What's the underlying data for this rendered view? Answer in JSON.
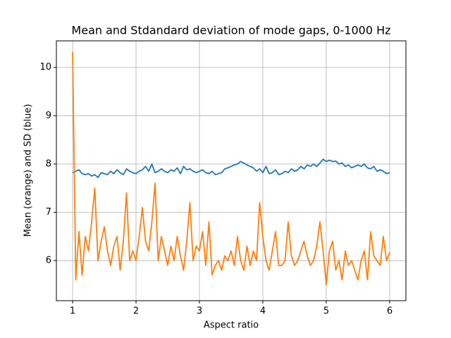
{
  "chart_data": {
    "type": "line",
    "title": "Mean and Stdandard deviation of mode gaps, 0-1000 Hz",
    "xlabel": "Aspect ratio",
    "ylabel": "Mean (orange) and SD (blue)",
    "x": [
      1,
      1.05,
      1.1,
      1.15,
      1.2,
      1.25,
      1.3,
      1.35,
      1.4,
      1.45,
      1.5,
      1.55,
      1.6,
      1.65,
      1.7,
      1.75,
      1.8,
      1.85,
      1.9,
      1.95,
      2,
      2.05,
      2.1,
      2.15,
      2.2,
      2.25,
      2.3,
      2.35,
      2.4,
      2.45,
      2.5,
      2.55,
      2.6,
      2.65,
      2.7,
      2.75,
      2.8,
      2.85,
      2.9,
      2.95,
      3,
      3.05,
      3.1,
      3.15,
      3.2,
      3.25,
      3.3,
      3.35,
      3.4,
      3.45,
      3.5,
      3.55,
      3.6,
      3.65,
      3.7,
      3.75,
      3.8,
      3.85,
      3.9,
      3.95,
      4,
      4.05,
      4.1,
      4.15,
      4.2,
      4.25,
      4.3,
      4.35,
      4.4,
      4.45,
      4.5,
      4.55,
      4.6,
      4.65,
      4.7,
      4.75,
      4.8,
      4.85,
      4.9,
      4.95,
      5,
      5.05,
      5.1,
      5.15,
      5.2,
      5.25,
      5.3,
      5.35,
      5.4,
      5.45,
      5.5,
      5.55,
      5.6,
      5.65,
      5.7,
      5.75,
      5.8,
      5.85,
      5.9,
      5.95,
      6
    ],
    "series": [
      {
        "color": "#1f77b4",
        "values": [
          7.82,
          7.85,
          7.88,
          7.8,
          7.78,
          7.8,
          7.75,
          7.78,
          7.72,
          7.82,
          7.8,
          7.78,
          7.85,
          7.8,
          7.88,
          7.82,
          7.78,
          7.9,
          7.85,
          7.82,
          7.8,
          7.85,
          7.88,
          7.95,
          7.85,
          8.0,
          7.82,
          7.85,
          7.9,
          7.85,
          7.82,
          7.88,
          7.85,
          7.92,
          7.8,
          7.95,
          7.88,
          7.9,
          7.85,
          7.82,
          7.85,
          7.88,
          7.82,
          7.8,
          7.85,
          7.78,
          7.8,
          7.82,
          7.9,
          7.92,
          7.95,
          7.98,
          8.0,
          8.05,
          8.02,
          7.98,
          7.95,
          7.92,
          7.85,
          7.9,
          7.82,
          7.95,
          7.8,
          7.82,
          7.88,
          7.78,
          7.8,
          7.85,
          7.82,
          7.9,
          7.85,
          7.88,
          7.95,
          7.9,
          7.98,
          7.95,
          8.0,
          7.95,
          8.02,
          8.1,
          8.05,
          8.08,
          8.05,
          8.06,
          8.0,
          8.02,
          7.95,
          7.98,
          7.92,
          7.95,
          7.98,
          7.95,
          8.0,
          7.92,
          7.9,
          7.95,
          7.85,
          7.88,
          7.85,
          7.8,
          7.82
        ]
      },
      {
        "color": "#ff7f0e",
        "values": [
          10.32,
          5.6,
          6.6,
          5.7,
          6.5,
          6.2,
          6.8,
          7.5,
          6.0,
          6.4,
          6.7,
          6.2,
          5.9,
          6.3,
          6.5,
          5.8,
          6.4,
          7.4,
          6.0,
          6.2,
          6.0,
          6.5,
          7.1,
          6.4,
          6.2,
          6.8,
          7.6,
          6.0,
          6.5,
          6.2,
          5.9,
          6.3,
          6.0,
          6.5,
          6.1,
          5.8,
          6.4,
          7.2,
          6.0,
          6.3,
          6.2,
          6.6,
          5.9,
          6.8,
          5.7,
          5.9,
          6.0,
          5.8,
          6.1,
          6.0,
          6.2,
          5.9,
          6.5,
          6.0,
          5.8,
          6.3,
          5.9,
          6.2,
          6.0,
          7.2,
          6.5,
          6.0,
          5.8,
          6.2,
          6.6,
          5.9,
          5.9,
          6.0,
          6.8,
          6.1,
          5.9,
          6.0,
          6.2,
          6.4,
          6.1,
          5.9,
          6.0,
          6.3,
          6.8,
          6.2,
          5.5,
          6.2,
          6.4,
          5.8,
          6.0,
          5.6,
          6.2,
          5.9,
          6.0,
          5.8,
          5.6,
          6.0,
          6.2,
          5.6,
          6.6,
          6.1,
          6.0,
          5.9,
          6.5,
          6.0,
          6.17
        ]
      }
    ],
    "xlim": [
      0.744,
      6.256
    ],
    "ylim": [
      5.17,
      10.55
    ],
    "xticks": [
      1,
      2,
      3,
      4,
      5,
      6
    ],
    "yticks": [
      6,
      7,
      8,
      9,
      10
    ],
    "grid": true
  }
}
